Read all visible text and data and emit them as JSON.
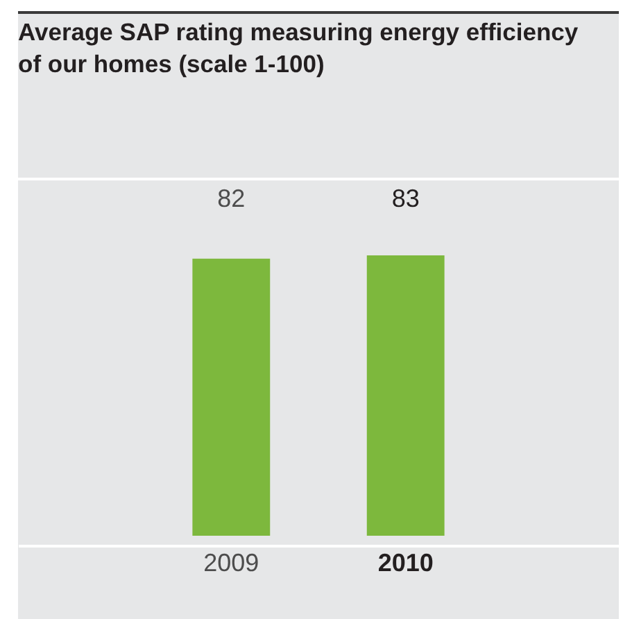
{
  "chart_data": {
    "type": "bar",
    "title": "Average SAP rating measuring energy efficiency of our homes (scale 1-100)",
    "categories": [
      "2009",
      "2010"
    ],
    "values": [
      82,
      83
    ],
    "color": "#7db83d",
    "data_labels": true,
    "tick_labels": "x"
  }
}
